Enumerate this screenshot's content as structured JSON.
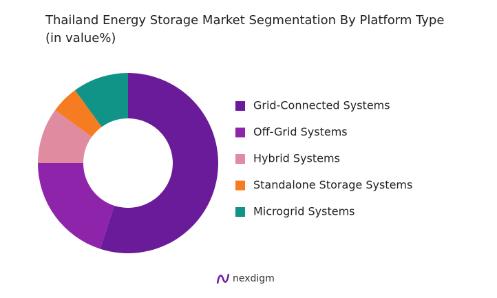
{
  "chart_data": {
    "type": "pie",
    "title": "Thailand Energy Storage Market Segmentation By Platform Type (in value%)",
    "categories": [
      "Grid-Connected Systems",
      "Off-Grid Systems",
      "Hybrid Systems",
      "Standalone Storage Systems",
      "Microgrid Systems"
    ],
    "values": [
      55,
      20,
      10,
      5,
      10
    ],
    "colors": [
      "#6a1b9a",
      "#8e24aa",
      "#e08ca0",
      "#f57c20",
      "#109487"
    ],
    "hole": true,
    "legend": "right"
  },
  "brand": "nexdigm"
}
